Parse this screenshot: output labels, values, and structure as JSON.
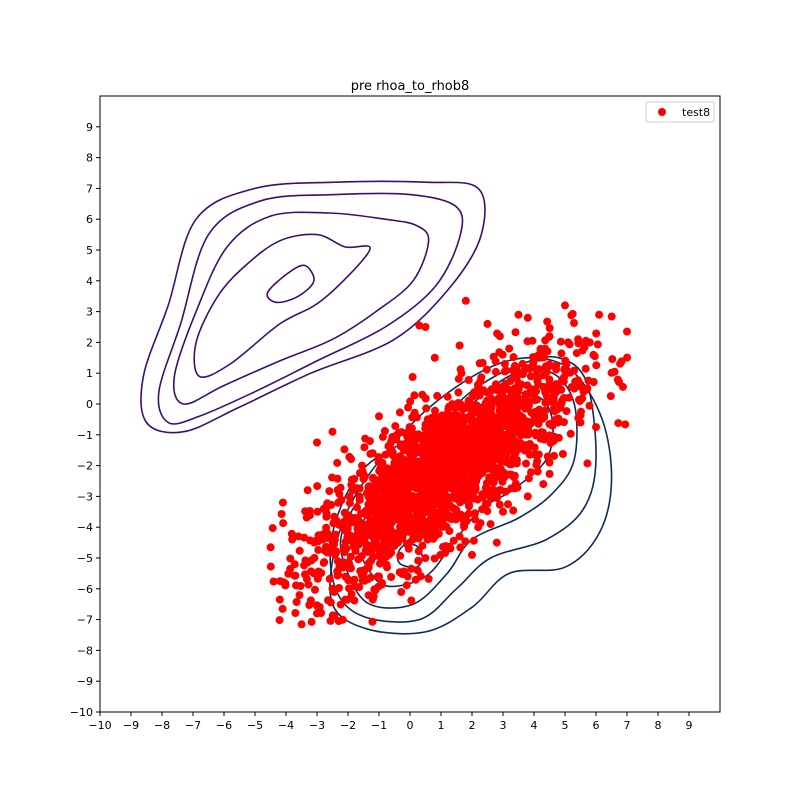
{
  "chart_data": {
    "type": "scatter",
    "title": "pre rhoa_to_rhob8",
    "xlabel": "",
    "ylabel": "",
    "xlim": [
      -10,
      10
    ],
    "ylim": [
      -10,
      10
    ],
    "xticks": [
      -10,
      -9,
      -8,
      -7,
      -6,
      -5,
      -4,
      -3,
      -2,
      -1,
      0,
      1,
      2,
      3,
      4,
      5,
      6,
      7,
      8,
      9
    ],
    "yticks": [
      -10,
      -9,
      -8,
      -7,
      -6,
      -5,
      -4,
      -3,
      -2,
      -1,
      0,
      1,
      2,
      3,
      4,
      5,
      6,
      7,
      8,
      9
    ],
    "grid": false,
    "legend": {
      "placement": "top-right",
      "entries": [
        {
          "label": "test8",
          "color": "#ff0000",
          "marker": "circle"
        }
      ]
    },
    "series": [
      {
        "name": "test8",
        "kind": "scatter",
        "color": "#ff0000",
        "distribution": {
          "center": [
            1.0,
            -2.2
          ],
          "std_x": 2.1,
          "std_y": 1.8,
          "correlation": 0.78,
          "count": 2000
        },
        "points": [
          [
            1.8,
            3.35
          ],
          [
            0.3,
            2.55
          ],
          [
            0.5,
            2.5
          ],
          [
            5.0,
            3.2
          ],
          [
            6.1,
            2.9
          ],
          [
            7.0,
            2.35
          ],
          [
            5.8,
            2.0
          ],
          [
            4.5,
            2.2
          ],
          [
            5.1,
            2.0
          ],
          [
            6.6,
            1.05
          ],
          [
            5.3,
            0.5
          ],
          [
            5.6,
            0.4
          ],
          [
            -3.0,
            -1.25
          ],
          [
            -4.1,
            -3.2
          ],
          [
            -4.2,
            -6.35
          ],
          [
            -2.3,
            -7.05
          ],
          [
            -3.0,
            -6.8
          ],
          [
            -1.2,
            -6.35
          ],
          [
            2.0,
            -4.9
          ],
          [
            2.8,
            -4.5
          ],
          [
            2.6,
            -3.9
          ],
          [
            0.8,
            -4.3
          ],
          [
            1.6,
            -4.3
          ],
          [
            -3.1,
            -5.5
          ],
          [
            -2.5,
            -6.0
          ],
          [
            -3.6,
            -4.3
          ],
          [
            3.5,
            2.9
          ],
          [
            3.8,
            2.8
          ],
          [
            2.5,
            2.6
          ],
          [
            4.2,
            1.5
          ],
          [
            5.5,
            -0.6
          ],
          [
            4.9,
            0.1
          ],
          [
            4.3,
            -2.6
          ],
          [
            0.8,
            1.5
          ],
          [
            -1.0,
            -0.4
          ],
          [
            -2.5,
            -0.9
          ],
          [
            -3.3,
            -2.8
          ],
          [
            -3.8,
            -4.4
          ],
          [
            -2.0,
            -5.2
          ],
          [
            -1.0,
            -5.6
          ],
          [
            0.4,
            -4.6
          ],
          [
            -0.2,
            -4.2
          ],
          [
            1.0,
            -3.8
          ],
          [
            2.2,
            -4.0
          ],
          [
            3.0,
            -3.5
          ],
          [
            3.8,
            -3.0
          ],
          [
            4.5,
            -1.9
          ],
          [
            4.8,
            -1.1
          ],
          [
            3.9,
            0.9
          ],
          [
            3.2,
            1.8
          ],
          [
            2.9,
            2.2
          ],
          [
            1.6,
            1.9
          ],
          [
            0.4,
            0.3
          ],
          [
            -0.6,
            -1.2
          ]
        ]
      }
    ],
    "contours": [
      {
        "group": "upper-left",
        "color": "#3b0f70",
        "levels": [
          [
            [
              -5.3,
              4.5
            ],
            [
              -4.2,
              5.3
            ],
            [
              -3.0,
              5.5
            ],
            [
              -2.1,
              5.1
            ],
            [
              -1.3,
              5.0
            ],
            [
              -2.8,
              3.4
            ],
            [
              -4.2,
              2.6
            ],
            [
              -5.8,
              1.3
            ],
            [
              -6.8,
              0.9
            ],
            [
              -6.9,
              2.0
            ],
            [
              -6.2,
              3.5
            ]
          ],
          [
            [
              -5.9,
              5.1
            ],
            [
              -4.5,
              6.1
            ],
            [
              -2.6,
              6.2
            ],
            [
              -0.8,
              6.0
            ],
            [
              0.2,
              5.8
            ],
            [
              0.6,
              5.3
            ],
            [
              0.1,
              4.0
            ],
            [
              -1.1,
              3.0
            ],
            [
              -2.5,
              2.1
            ],
            [
              -4.2,
              1.4
            ],
            [
              -6.0,
              0.6
            ],
            [
              -7.3,
              0.0
            ],
            [
              -7.6,
              0.9
            ],
            [
              -6.9,
              3.0
            ]
          ],
          [
            [
              -6.5,
              5.5
            ],
            [
              -4.8,
              6.6
            ],
            [
              -2.4,
              6.8
            ],
            [
              0.0,
              6.8
            ],
            [
              1.5,
              6.4
            ],
            [
              1.6,
              5.4
            ],
            [
              0.8,
              3.8
            ],
            [
              -0.8,
              2.5
            ],
            [
              -3.0,
              1.4
            ],
            [
              -5.0,
              0.4
            ],
            [
              -6.8,
              -0.4
            ],
            [
              -7.8,
              -0.6
            ],
            [
              -8.1,
              0.4
            ],
            [
              -7.4,
              2.6
            ]
          ],
          [
            [
              -6.9,
              6.0
            ],
            [
              -5.0,
              7.0
            ],
            [
              -2.4,
              7.2
            ],
            [
              0.5,
              7.2
            ],
            [
              2.2,
              7.0
            ],
            [
              2.3,
              5.5
            ],
            [
              1.3,
              3.8
            ],
            [
              -0.5,
              2.1
            ],
            [
              -3.2,
              1.0
            ],
            [
              -5.5,
              -0.1
            ],
            [
              -7.3,
              -0.9
            ],
            [
              -8.5,
              -0.6
            ],
            [
              -8.6,
              0.9
            ],
            [
              -7.8,
              3.2
            ]
          ]
        ],
        "peak": [
          [
            -4.6,
            3.6
          ],
          [
            -4.0,
            4.2
          ],
          [
            -3.4,
            4.5
          ],
          [
            -3.1,
            4.0
          ],
          [
            -3.6,
            3.5
          ],
          [
            -4.3,
            3.3
          ]
        ]
      },
      {
        "group": "lower-right",
        "color": "#0b2e56",
        "levels": [
          [
            [
              -0.3,
              -5.2
            ],
            [
              0.2,
              -5.3
            ],
            [
              0.4,
              -5.0
            ],
            [
              0.2,
              -4.6
            ],
            [
              -0.2,
              -4.6
            ],
            [
              -0.4,
              -4.9
            ]
          ],
          [
            [
              -1.5,
              -5.1
            ],
            [
              -1.8,
              -4.3
            ],
            [
              -0.8,
              -3.0
            ],
            [
              0.8,
              -1.8
            ],
            [
              2.1,
              -0.5
            ],
            [
              3.2,
              0.3
            ],
            [
              4.2,
              0.2
            ],
            [
              4.6,
              -0.6
            ],
            [
              4.4,
              -1.8
            ],
            [
              3.3,
              -2.8
            ],
            [
              2.3,
              -3.4
            ],
            [
              1.4,
              -4.5
            ],
            [
              0.5,
              -5.6
            ],
            [
              -0.8,
              -5.9
            ]
          ],
          [
            [
              -2.0,
              -5.5
            ],
            [
              -2.2,
              -4.2
            ],
            [
              -1.2,
              -2.6
            ],
            [
              0.8,
              -1.3
            ],
            [
              2.0,
              0.0
            ],
            [
              3.4,
              1.0
            ],
            [
              4.6,
              1.0
            ],
            [
              5.3,
              0.0
            ],
            [
              5.3,
              -1.8
            ],
            [
              4.6,
              -2.9
            ],
            [
              3.5,
              -3.7
            ],
            [
              2.0,
              -4.4
            ],
            [
              1.2,
              -5.5
            ],
            [
              0.1,
              -6.5
            ],
            [
              -1.3,
              -6.5
            ]
          ],
          [
            [
              -2.4,
              -6.0
            ],
            [
              -2.5,
              -4.2
            ],
            [
              -1.5,
              -2.1
            ],
            [
              0.6,
              -0.8
            ],
            [
              2.1,
              0.5
            ],
            [
              3.6,
              1.3
            ],
            [
              4.8,
              1.5
            ],
            [
              5.7,
              0.7
            ],
            [
              6.0,
              -1.8
            ],
            [
              5.6,
              -3.4
            ],
            [
              4.4,
              -4.4
            ],
            [
              2.6,
              -5.0
            ],
            [
              1.5,
              -6.0
            ],
            [
              0.3,
              -7.0
            ],
            [
              -1.5,
              -6.9
            ]
          ],
          [
            [
              -2.5,
              -6.5
            ],
            [
              -2.4,
              -4.6
            ],
            [
              -1.6,
              -2.7
            ],
            [
              0.2,
              -0.5
            ],
            [
              2.2,
              1.0
            ],
            [
              3.8,
              1.5
            ],
            [
              5.2,
              1.1
            ],
            [
              6.2,
              -0.5
            ],
            [
              6.5,
              -2.5
            ],
            [
              6.1,
              -4.2
            ],
            [
              5.0,
              -5.3
            ],
            [
              3.2,
              -5.5
            ],
            [
              2.0,
              -6.6
            ],
            [
              0.5,
              -7.4
            ],
            [
              -1.4,
              -7.3
            ]
          ]
        ]
      }
    ]
  }
}
